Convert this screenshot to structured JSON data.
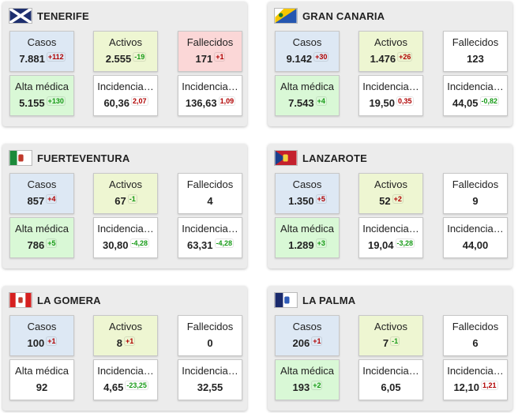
{
  "labels": {
    "casos": "Casos",
    "activos": "Activos",
    "fallecidos": "Fallecidos",
    "alta": "Alta médica",
    "incidencia": "Incidencia…"
  },
  "colors": {
    "casos": "#dde8f4",
    "activos": "#eef6d2",
    "fallecidos_alert": "#fbd7d7",
    "alta": "#d9f8d6",
    "neutral": "#ffffff",
    "delta_up": "#b00000",
    "delta_down": "#179a17"
  },
  "islands": [
    {
      "name": "TENERIFE",
      "flag_icon": "tenerife-flag-icon",
      "casos": {
        "value": "7.881",
        "delta": "+112"
      },
      "activos": {
        "value": "2.555",
        "delta": "-19"
      },
      "fallecidos": {
        "value": "171",
        "delta": "+1"
      },
      "alta": {
        "value": "5.155",
        "delta": "+130"
      },
      "incidencia7": {
        "value": "60,36",
        "delta": "2,07"
      },
      "incidencia14": {
        "value": "136,63",
        "delta": "1,09"
      }
    },
    {
      "name": "GRAN CANARIA",
      "flag_icon": "gran-canaria-flag-icon",
      "casos": {
        "value": "9.142",
        "delta": "+30"
      },
      "activos": {
        "value": "1.476",
        "delta": "+26"
      },
      "fallecidos": {
        "value": "123",
        "delta": ""
      },
      "alta": {
        "value": "7.543",
        "delta": "+4"
      },
      "incidencia7": {
        "value": "19,50",
        "delta": "0,35"
      },
      "incidencia14": {
        "value": "44,05",
        "delta": "-0,82"
      }
    },
    {
      "name": "FUERTEVENTURA",
      "flag_icon": "fuerteventura-flag-icon",
      "casos": {
        "value": "857",
        "delta": "+4"
      },
      "activos": {
        "value": "67",
        "delta": "-1"
      },
      "fallecidos": {
        "value": "4",
        "delta": ""
      },
      "alta": {
        "value": "786",
        "delta": "+5"
      },
      "incidencia7": {
        "value": "30,80",
        "delta": "-4,28"
      },
      "incidencia14": {
        "value": "63,31",
        "delta": "-4,28"
      }
    },
    {
      "name": "LANZAROTE",
      "flag_icon": "lanzarote-flag-icon",
      "casos": {
        "value": "1.350",
        "delta": "+5"
      },
      "activos": {
        "value": "52",
        "delta": "+2"
      },
      "fallecidos": {
        "value": "9",
        "delta": ""
      },
      "alta": {
        "value": "1.289",
        "delta": "+3"
      },
      "incidencia7": {
        "value": "19,04",
        "delta": "-3,28"
      },
      "incidencia14": {
        "value": "44,00",
        "delta": ""
      }
    },
    {
      "name": "LA GOMERA",
      "flag_icon": "la-gomera-flag-icon",
      "casos": {
        "value": "100",
        "delta": "+1"
      },
      "activos": {
        "value": "8",
        "delta": "+1"
      },
      "fallecidos": {
        "value": "0",
        "delta": ""
      },
      "alta": {
        "value": "92",
        "delta": ""
      },
      "incidencia7": {
        "value": "4,65",
        "delta": "-23,25"
      },
      "incidencia14": {
        "value": "32,55",
        "delta": ""
      }
    },
    {
      "name": "LA PALMA",
      "flag_icon": "la-palma-flag-icon",
      "casos": {
        "value": "206",
        "delta": "+1"
      },
      "activos": {
        "value": "7",
        "delta": "-1"
      },
      "fallecidos": {
        "value": "6",
        "delta": ""
      },
      "alta": {
        "value": "193",
        "delta": "+2"
      },
      "incidencia7": {
        "value": "6,05",
        "delta": ""
      },
      "incidencia14": {
        "value": "12,10",
        "delta": "1,21"
      }
    }
  ]
}
